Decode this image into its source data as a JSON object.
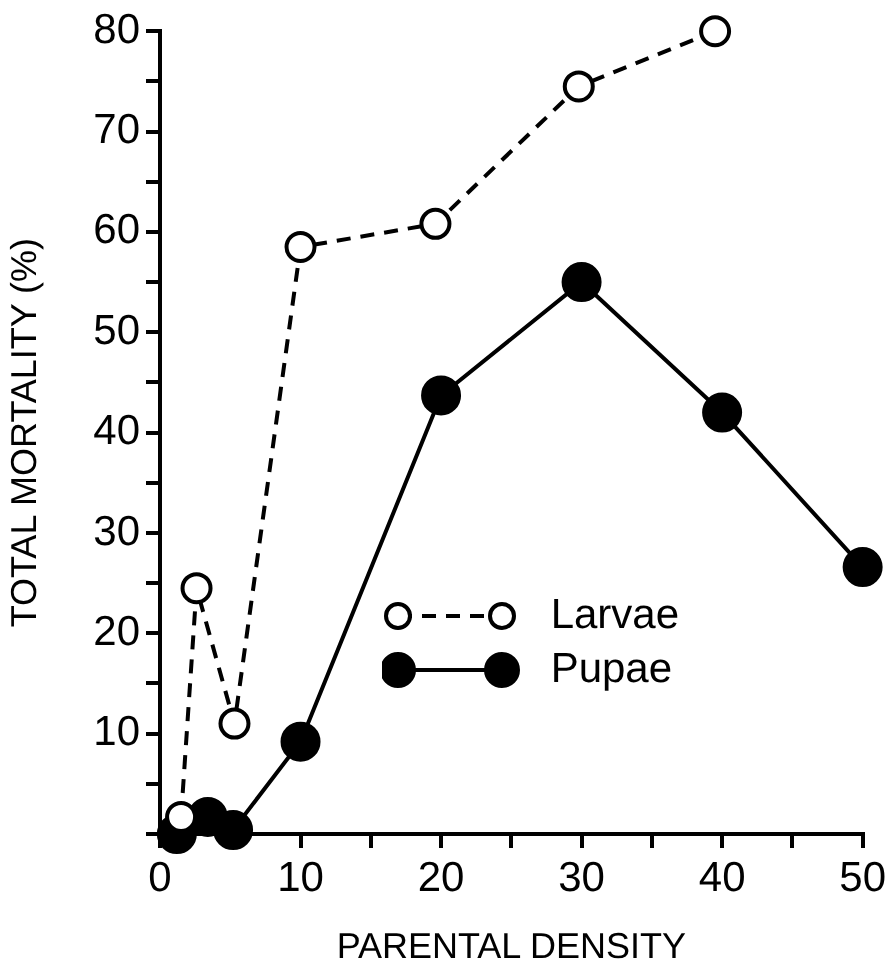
{
  "chart_data": {
    "type": "line",
    "xlabel": "PARENTAL DENSITY",
    "ylabel": "TOTAL MORTALITY (%)",
    "xlim": [
      0,
      50
    ],
    "ylim": [
      0,
      80
    ],
    "xticks": [
      0,
      {
        "value": 5,
        "label": null
      },
      10,
      {
        "value": 15,
        "label": null
      },
      20,
      {
        "value": 25,
        "label": null
      },
      30,
      {
        "value": 35,
        "label": null
      },
      40,
      {
        "value": 45,
        "label": null
      },
      50
    ],
    "yticks": [
      {
        "value": 0,
        "label": null
      },
      {
        "value": 5,
        "label": null
      },
      10,
      {
        "value": 15,
        "label": null
      },
      20,
      {
        "value": 25,
        "label": null
      },
      30,
      {
        "value": 35,
        "label": null
      },
      40,
      {
        "value": 45,
        "label": null
      },
      50,
      {
        "value": 55,
        "label": null
      },
      60,
      {
        "value": 65,
        "label": null
      },
      70,
      {
        "value": 75,
        "label": null
      },
      80
    ],
    "grid": false,
    "legend": "bottom right",
    "marker": "circle",
    "series": [
      {
        "name": "Larvae",
        "color": "#000000",
        "line_style": "dashed",
        "x": [
          1.5,
          2.6,
          5.3,
          10,
          19.6,
          29.8,
          39.5
        ],
        "values": [
          1.7,
          24.5,
          11,
          58.5,
          60.8,
          74.5,
          80
        ]
      },
      {
        "name": "Pupae",
        "color": "#000000",
        "line_style": "solid",
        "x": [
          1.2,
          3.4,
          5.2,
          10,
          20,
          30,
          40,
          50
        ],
        "values": [
          0,
          1.7,
          0.4,
          9.2,
          43.7,
          55,
          42,
          26.6
        ]
      }
    ]
  }
}
